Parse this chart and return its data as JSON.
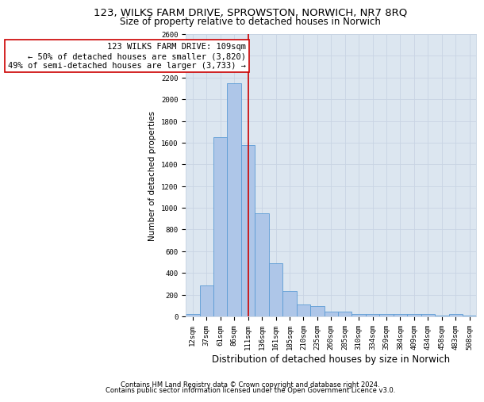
{
  "title1": "123, WILKS FARM DRIVE, SPROWSTON, NORWICH, NR7 8RQ",
  "title2": "Size of property relative to detached houses in Norwich",
  "xlabel": "Distribution of detached houses by size in Norwich",
  "ylabel": "Number of detached properties",
  "categories": [
    "12sqm",
    "37sqm",
    "61sqm",
    "86sqm",
    "111sqm",
    "136sqm",
    "161sqm",
    "185sqm",
    "210sqm",
    "235sqm",
    "260sqm",
    "285sqm",
    "310sqm",
    "334sqm",
    "359sqm",
    "384sqm",
    "409sqm",
    "434sqm",
    "458sqm",
    "483sqm",
    "508sqm"
  ],
  "values": [
    25,
    285,
    1650,
    2150,
    1575,
    950,
    490,
    235,
    110,
    95,
    40,
    40,
    25,
    20,
    20,
    20,
    20,
    20,
    5,
    20,
    5
  ],
  "bar_color": "#aec6e8",
  "bar_edge_color": "#5b9bd5",
  "vline_x": 4,
  "marker_label1": "123 WILKS FARM DRIVE: 109sqm",
  "marker_label2": "← 50% of detached houses are smaller (3,820)",
  "marker_label3": "49% of semi-detached houses are larger (3,733) →",
  "annotation_box_facecolor": "#ffffff",
  "annotation_box_edgecolor": "#cc0000",
  "vline_color": "#cc0000",
  "ylim": [
    0,
    2600
  ],
  "yticks": [
    0,
    200,
    400,
    600,
    800,
    1000,
    1200,
    1400,
    1600,
    1800,
    2000,
    2200,
    2400,
    2600
  ],
  "grid_color": "#c8d4e3",
  "plot_bg_color": "#dce6f0",
  "footnote1": "Contains HM Land Registry data © Crown copyright and database right 2024.",
  "footnote2": "Contains public sector information licensed under the Open Government Licence v3.0.",
  "title1_fontsize": 9.5,
  "title2_fontsize": 8.5,
  "xlabel_fontsize": 8.5,
  "ylabel_fontsize": 7.5,
  "tick_fontsize": 6.5,
  "annotation_fontsize": 7.5,
  "footnote_fontsize": 6.0
}
